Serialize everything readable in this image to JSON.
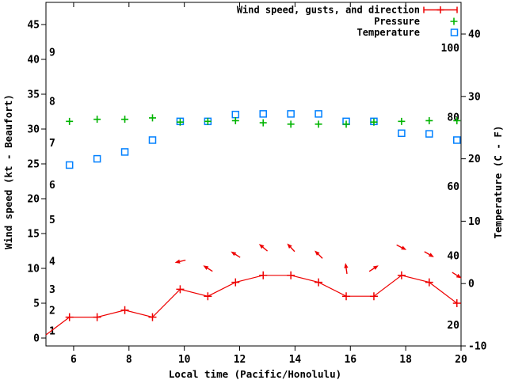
{
  "figure": {
    "background_color": "#ffffff",
    "text_color": "#000000",
    "x_axis": {
      "label": "Local time (Pacific/Honolulu)",
      "range": [
        5,
        20
      ],
      "tick_values": [
        6,
        8,
        10,
        12,
        14,
        16,
        18,
        20
      ]
    },
    "y_axis_left": {
      "label": "Wind speed (kt - Beaufort)",
      "tick_values_kt": [
        0,
        5,
        10,
        15,
        20,
        25,
        30,
        35,
        40,
        45
      ],
      "beaufort_scale_labels": [
        {
          "label": "1",
          "kt": 1
        },
        {
          "label": "2",
          "kt": 4
        },
        {
          "label": "3",
          "kt": 7
        },
        {
          "label": "4",
          "kt": 11
        },
        {
          "label": "5",
          "kt": 17
        },
        {
          "label": "6",
          "kt": 22
        },
        {
          "label": "7",
          "kt": 28
        },
        {
          "label": "8",
          "kt": 34
        },
        {
          "label": "9",
          "kt": 41
        }
      ]
    },
    "y_axis_right": {
      "label": "Temperature (C - F)",
      "tick_values_c": [
        -10,
        0,
        10,
        20,
        30,
        40
      ],
      "fahrenheit_scale_labels": [
        {
          "label": "20",
          "f": 20
        },
        {
          "label": "40",
          "f": 40
        },
        {
          "label": "60",
          "f": 60
        },
        {
          "label": "80",
          "f": 80
        },
        {
          "label": "100",
          "f": 100
        }
      ]
    },
    "legend": [
      {
        "label": "Wind speed, gusts, and direction",
        "color": "#ee0000",
        "marker": "errorbar-line-plus"
      },
      {
        "label": "Pressure",
        "color": "#00b400",
        "marker": "plus"
      },
      {
        "label": "Temperature",
        "color": "#0080ff",
        "marker": "open-square"
      }
    ]
  },
  "chart_data": {
    "type": "line",
    "title": "",
    "xlabel": "Local time (Pacific/Honolulu)",
    "ylabel_left": "Wind speed (kt - Beaufort)",
    "ylabel_right": "Temperature (C - F)",
    "xlim": [
      5,
      20
    ],
    "ylim_left_kt": [
      -1.1,
      48.2
    ],
    "ylim_right_c": [
      -10,
      45.1
    ],
    "grid": false,
    "legend_position": "top-right-inside",
    "series": [
      {
        "name": "Wind speed, gusts, and direction",
        "axis": "left_kt",
        "color": "#ee0000",
        "marker": "plus",
        "line": true,
        "x": [
          4.85,
          5.85,
          6.85,
          7.85,
          8.85,
          9.85,
          10.85,
          11.85,
          12.85,
          13.85,
          14.85,
          15.85,
          16.85,
          17.85,
          18.85,
          19.85
        ],
        "y": [
          0,
          3,
          3,
          4,
          3,
          7,
          6,
          8,
          9,
          9,
          8,
          6,
          6,
          9,
          8,
          5
        ]
      },
      {
        "name": "Pressure",
        "axis": "left_axis_position_no_pressure_scale_shown",
        "color": "#00b400",
        "marker": "plus",
        "line": false,
        "x": [
          5.85,
          6.85,
          7.85,
          8.85,
          9.85,
          10.85,
          11.85,
          12.85,
          13.85,
          14.85,
          15.85,
          16.85,
          17.85,
          18.85,
          19.85
        ],
        "y": [
          31.1,
          31.4,
          31.4,
          31.6,
          31.0,
          31.1,
          31.2,
          30.9,
          30.7,
          30.7,
          30.7,
          31.0,
          31.1,
          31.2,
          31.2
        ]
      },
      {
        "name": "Temperature",
        "axis": "right_c",
        "color": "#0080ff",
        "marker": "open-square",
        "line": false,
        "x": [
          5.85,
          6.85,
          7.85,
          8.85,
          9.85,
          10.85,
          11.85,
          12.85,
          13.85,
          14.85,
          15.85,
          16.85,
          17.85,
          18.85,
          19.85
        ],
        "y": [
          19.0,
          20.0,
          21.1,
          23.0,
          26.0,
          26.0,
          27.1,
          27.2,
          27.2,
          27.2,
          26.0,
          26.0,
          24.1,
          24.0,
          23.0
        ]
      }
    ],
    "wind_gust_direction_arrows": {
      "color": "#ee0000",
      "note": "arrow position = gust speed on left kt axis, arrow points in wind direction",
      "points": [
        {
          "x": 9.85,
          "gust_kt": 11,
          "angle_deg": 193
        },
        {
          "x": 10.85,
          "gust_kt": 10,
          "angle_deg": 148
        },
        {
          "x": 11.85,
          "gust_kt": 12,
          "angle_deg": 147
        },
        {
          "x": 12.85,
          "gust_kt": 13,
          "angle_deg": 140
        },
        {
          "x": 13.85,
          "gust_kt": 13,
          "angle_deg": 133
        },
        {
          "x": 14.85,
          "gust_kt": 12,
          "angle_deg": 135
        },
        {
          "x": 15.85,
          "gust_kt": 10,
          "angle_deg": 98
        },
        {
          "x": 16.85,
          "gust_kt": 10,
          "angle_deg": 33
        },
        {
          "x": 17.85,
          "gust_kt": 13,
          "angle_deg": -27
        },
        {
          "x": 18.85,
          "gust_kt": 12,
          "angle_deg": -30
        },
        {
          "x": 19.85,
          "gust_kt": 9,
          "angle_deg": -32
        }
      ]
    }
  }
}
